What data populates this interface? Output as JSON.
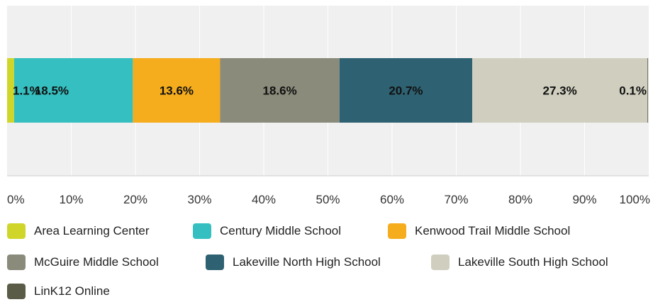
{
  "chart_data": {
    "type": "bar",
    "orientation": "horizontal-stacked",
    "title": "",
    "xlabel": "",
    "ylabel": "",
    "xlim": [
      0,
      100
    ],
    "x_ticks": [
      "0%",
      "10%",
      "20%",
      "30%",
      "40%",
      "50%",
      "60%",
      "70%",
      "80%",
      "90%",
      "100%"
    ],
    "grid": true,
    "legend_position": "bottom",
    "series": [
      {
        "name": "Area Learning Center",
        "value": 1.1,
        "label": "1.1%",
        "color": "#cfd629"
      },
      {
        "name": "Century Middle School",
        "value": 18.5,
        "label": "18.5%",
        "color": "#35bfc0"
      },
      {
        "name": "Kenwood Trail Middle School",
        "value": 13.6,
        "label": "13.6%",
        "color": "#f5ad1e"
      },
      {
        "name": "McGuire Middle School",
        "value": 18.6,
        "label": "18.6%",
        "color": "#8a8b7a"
      },
      {
        "name": "Lakeville North High School",
        "value": 20.7,
        "label": "20.7%",
        "color": "#2e6272"
      },
      {
        "name": "Lakeville South High School",
        "value": 27.3,
        "label": "27.3%",
        "color": "#d0cfbf"
      },
      {
        "name": "LinK12 Online",
        "value": 0.1,
        "label": "0.1%",
        "color": "#5a5c47"
      }
    ]
  }
}
